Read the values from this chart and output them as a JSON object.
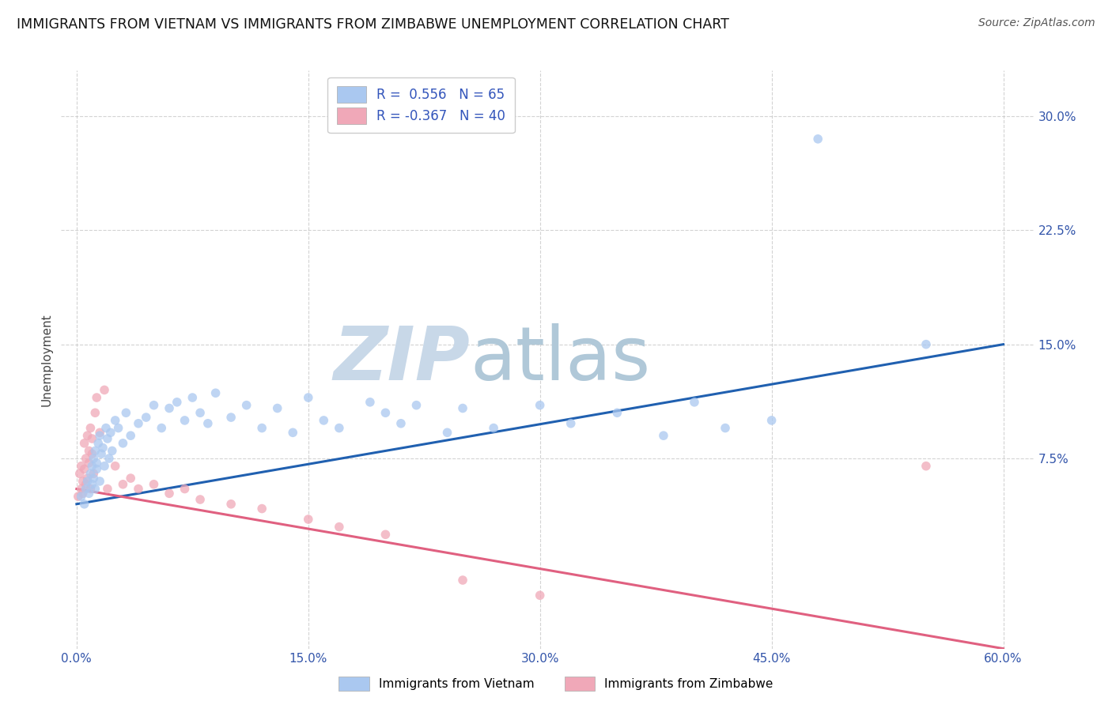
{
  "title": "IMMIGRANTS FROM VIETNAM VS IMMIGRANTS FROM ZIMBABWE UNEMPLOYMENT CORRELATION CHART",
  "source": "Source: ZipAtlas.com",
  "xlabel_vals": [
    0.0,
    15.0,
    30.0,
    45.0,
    60.0
  ],
  "ylabel_vals": [
    7.5,
    15.0,
    22.5,
    30.0
  ],
  "xlim": [
    -1,
    62
  ],
  "ylim": [
    -5,
    33
  ],
  "legend_vietnam": "R =  0.556   N = 65",
  "legend_zimbabwe": "R = -0.367   N = 40",
  "legend_label_vietnam": "Immigrants from Vietnam",
  "legend_label_zimbabwe": "Immigrants from Zimbabwe",
  "color_vietnam": "#aac8f0",
  "color_zimbabwe": "#f0a8b8",
  "color_line_vietnam": "#2060b0",
  "color_line_zimbabwe": "#e06080",
  "watermark_zip": "ZIP",
  "watermark_atlas": "atlas",
  "watermark_color_zip": "#c8d8e8",
  "watermark_color_atlas": "#b0c8d8",
  "title_fontsize": 12.5,
  "vietnam_x": [
    0.3,
    0.5,
    0.6,
    0.7,
    0.8,
    0.9,
    1.0,
    1.0,
    1.1,
    1.1,
    1.2,
    1.2,
    1.3,
    1.3,
    1.4,
    1.5,
    1.5,
    1.6,
    1.7,
    1.8,
    1.9,
    2.0,
    2.1,
    2.2,
    2.3,
    2.5,
    2.7,
    3.0,
    3.2,
    3.5,
    4.0,
    4.5,
    5.0,
    5.5,
    6.0,
    6.5,
    7.0,
    7.5,
    8.0,
    8.5,
    9.0,
    10.0,
    11.0,
    12.0,
    13.0,
    14.0,
    15.0,
    16.0,
    17.0,
    19.0,
    20.0,
    21.0,
    22.0,
    24.0,
    25.0,
    27.0,
    30.0,
    32.0,
    35.0,
    38.0,
    40.0,
    42.0,
    45.0,
    48.0,
    55.0
  ],
  "vietnam_y": [
    5.0,
    4.5,
    5.5,
    6.0,
    5.2,
    6.5,
    5.8,
    7.0,
    6.2,
    7.5,
    5.5,
    8.0,
    6.8,
    7.2,
    8.5,
    6.0,
    9.0,
    7.8,
    8.2,
    7.0,
    9.5,
    8.8,
    7.5,
    9.2,
    8.0,
    10.0,
    9.5,
    8.5,
    10.5,
    9.0,
    9.8,
    10.2,
    11.0,
    9.5,
    10.8,
    11.2,
    10.0,
    11.5,
    10.5,
    9.8,
    11.8,
    10.2,
    11.0,
    9.5,
    10.8,
    9.2,
    11.5,
    10.0,
    9.5,
    11.2,
    10.5,
    9.8,
    11.0,
    9.2,
    10.8,
    9.5,
    11.0,
    9.8,
    10.5,
    9.0,
    11.2,
    9.5,
    10.0,
    28.5,
    15.0
  ],
  "zimbabwe_x": [
    0.1,
    0.2,
    0.3,
    0.3,
    0.4,
    0.4,
    0.5,
    0.5,
    0.6,
    0.6,
    0.7,
    0.7,
    0.8,
    0.8,
    0.9,
    0.9,
    1.0,
    1.0,
    1.1,
    1.2,
    1.3,
    1.5,
    1.8,
    2.0,
    2.5,
    3.0,
    3.5,
    4.0,
    5.0,
    6.0,
    7.0,
    8.0,
    10.0,
    12.0,
    15.0,
    17.0,
    20.0,
    25.0,
    30.0,
    55.0
  ],
  "zimbabwe_y": [
    5.0,
    6.5,
    5.5,
    7.0,
    6.0,
    5.2,
    8.5,
    6.8,
    7.5,
    5.8,
    9.0,
    6.2,
    8.0,
    7.2,
    9.5,
    5.5,
    8.8,
    7.8,
    6.5,
    10.5,
    11.5,
    9.2,
    12.0,
    5.5,
    7.0,
    5.8,
    6.2,
    5.5,
    5.8,
    5.2,
    5.5,
    4.8,
    4.5,
    4.2,
    3.5,
    3.0,
    2.5,
    -0.5,
    -1.5,
    7.0
  ],
  "vietnam_line_x0": 0,
  "vietnam_line_x1": 60,
  "vietnam_line_y0": 4.5,
  "vietnam_line_y1": 15.0,
  "zimbabwe_line_x0": 0,
  "zimbabwe_line_x1": 60,
  "zimbabwe_line_y0": 5.5,
  "zimbabwe_line_y1": -5.0
}
